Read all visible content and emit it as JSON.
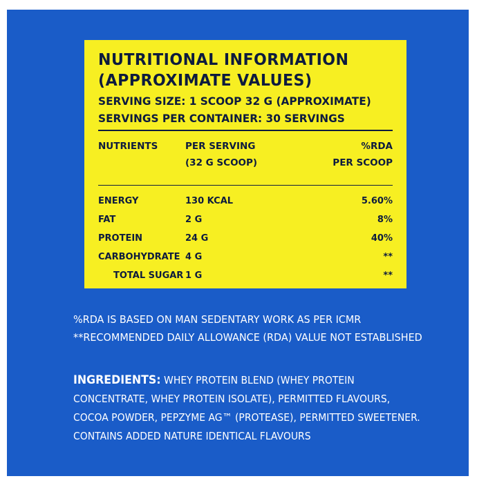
{
  "colors": {
    "background": "#1a5cc8",
    "panel": "#f7ef22",
    "text_dark": "#0d1b3e",
    "text_light": "#ffffff"
  },
  "nutrition": {
    "title_line1": "NUTRITIONAL INFORMATION",
    "title_line2": "(APPROXIMATE VALUES)",
    "serving_size": "SERVING SIZE: 1 SCOOP 32 G (APPROXIMATE)",
    "servings_per_container": "SERVINGS PER CONTAINER: 30 SERVINGS",
    "headers": {
      "nutrients": "NUTRIENTS",
      "per_serving_1": "PER SERVING",
      "per_serving_2": "(32 G SCOOP)",
      "rda_1": "%RDA",
      "rda_2": "PER SCOOP"
    },
    "rows": [
      {
        "name": "ENERGY",
        "value": "130 KCAL",
        "rda": "5.60%"
      },
      {
        "name": "FAT",
        "value": "2 G",
        "rda": "8%"
      },
      {
        "name": "PROTEIN",
        "value": "24 G",
        "rda": "40%"
      },
      {
        "name": "CARBOHYDRATE",
        "value": "4 G",
        "rda": "**"
      },
      {
        "name": "TOTAL SUGAR",
        "value": "1 G",
        "rda": "**"
      }
    ]
  },
  "footnotes": {
    "line1": "%RDA IS BASED ON MAN SEDENTARY WORK AS PER ICMR",
    "line2": "**RECOMMENDED DAILY ALLOWANCE (RDA) VALUE NOT ESTABLISHED"
  },
  "ingredients": {
    "label": "INGREDIENTS:",
    "line1": " WHEY PROTEIN BLEND (WHEY PROTEIN",
    "line2": "CONCENTRATE, WHEY PROTEIN ISOLATE), PERMITTED FLAVOURS,",
    "line3": "COCOA POWDER, PEPZYME AG™ (PROTEASE), PERMITTED SWEETENER.",
    "line4": "CONTAINS ADDED NATURE IDENTICAL FLAVOURS"
  }
}
